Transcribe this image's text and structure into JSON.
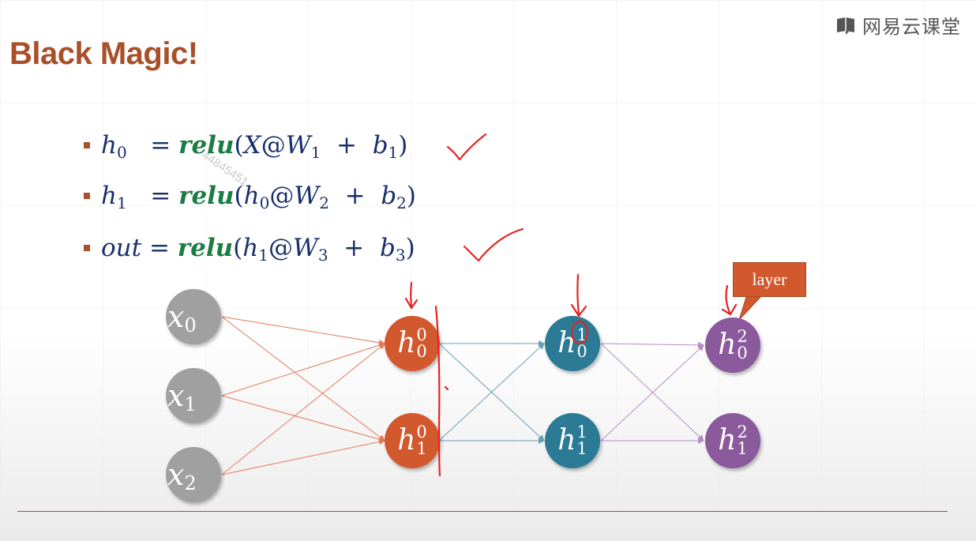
{
  "slide": {
    "title": "Black Magic!",
    "logo_text": "网易云课堂",
    "watermark": "44845451"
  },
  "equations": [
    {
      "lhs": "h",
      "lhs_sub": "0",
      "pad": "  ",
      "arg_var": "X",
      "arg_sub": "",
      "w_sub": "1",
      "b_sub": "1"
    },
    {
      "lhs": "h",
      "lhs_sub": "1",
      "pad": "  ",
      "arg_var": "h",
      "arg_sub": "0",
      "w_sub": "2",
      "b_sub": "2"
    },
    {
      "lhs": "out",
      "lhs_sub": "",
      "pad": " ",
      "arg_var": "h",
      "arg_sub": "1",
      "w_sub": "3",
      "b_sub": "3"
    }
  ],
  "equation_parts": {
    "eq": "= ",
    "fn": "relu",
    "open": "(",
    "at": "@",
    "w": "W",
    "plus": "  +  ",
    "b": "b",
    "close": ")"
  },
  "network": {
    "inputs": [
      {
        "base": "x",
        "sub": "0"
      },
      {
        "base": "x",
        "sub": "1"
      },
      {
        "base": "x",
        "sub": "2"
      }
    ],
    "layer0": [
      {
        "base": "h",
        "sup": "0",
        "sub": "0"
      },
      {
        "base": "h",
        "sup": "0",
        "sub": "1"
      }
    ],
    "layer1": [
      {
        "base": "h",
        "sup": "1",
        "sub": "0"
      },
      {
        "base": "h",
        "sup": "1",
        "sub": "1"
      }
    ],
    "layer2": [
      {
        "base": "h",
        "sup": "2",
        "sub": "0"
      },
      {
        "base": "h",
        "sup": "2",
        "sub": "1"
      }
    ],
    "callout_label": "layer"
  },
  "colors": {
    "title": "#a9502a",
    "equation_text": "#1a2f6b",
    "relu": "#1b7d43",
    "input_node": "#a0a0a0",
    "layer0_node": "#d2582e",
    "layer1_node": "#2b7b96",
    "layer2_node": "#8a5a9c",
    "annotation_ink": "#e52222"
  }
}
